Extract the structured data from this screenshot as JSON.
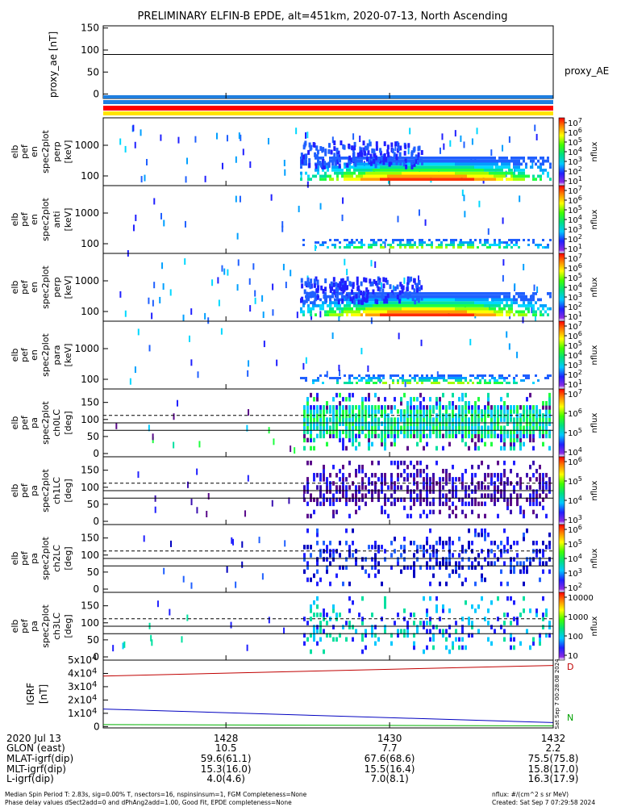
{
  "title": "PRELIMINARY ELFIN-B EPDE, alt=451km, 2020-07-13, North Ascending",
  "colors": {
    "bar_blue": "#1e7fe0",
    "bar_red": "#ff0000",
    "bar_yellow": "#ffe400",
    "model_red": "#c00000",
    "model_blue": "#0000c0",
    "model_green": "#00b000"
  },
  "chart_data": [
    {
      "type": "line",
      "name": "proxy_ae",
      "ylabel": "proxy_ae [nT]",
      "legend": "proxy_AE",
      "ylim": [
        -10,
        155
      ],
      "yticks": [
        "150",
        "100",
        "50",
        "0"
      ],
      "values_note": "",
      "series": [
        {
          "name": "proxy_AE",
          "x": [
            1426.5,
            1432.0
          ],
          "y": [
            90,
            90
          ]
        }
      ],
      "annotation_bars": [
        "blue",
        "red",
        "yellow"
      ]
    },
    {
      "type": "heatmap",
      "name": "elb_pef_en_spec2plot_perp",
      "ylabel": [
        "elb",
        "pef",
        "en",
        "spec2plot",
        "perp",
        "[keV]"
      ],
      "yticks": [
        "1000",
        "100"
      ],
      "colorbar_label": "nflux",
      "colorbar_ticks": [
        "10^7",
        "10^6",
        "10^5",
        "10^4",
        "10^3",
        "10^2",
        "10^1"
      ]
    },
    {
      "type": "heatmap",
      "name": "elb_pef_en_spec2plot_anti",
      "ylabel": [
        "elb",
        "pef",
        "en",
        "spec2plot",
        "anti",
        "[keV]"
      ],
      "yticks": [
        "1000",
        "100"
      ],
      "colorbar_label": "nflux",
      "colorbar_ticks": [
        "10^7",
        "10^6",
        "10^5",
        "10^4",
        "10^3",
        "10^2",
        "10^1"
      ]
    },
    {
      "type": "heatmap",
      "name": "elb_pef_en_spec2plot_perp2",
      "ylabel": [
        "elb",
        "pef",
        "en",
        "spec2plot",
        "perp",
        "[keV]"
      ],
      "yticks": [
        "1000",
        "100"
      ],
      "colorbar_label": "nflux",
      "colorbar_ticks": [
        "10^7",
        "10^6",
        "10^5",
        "10^4",
        "10^3",
        "10^2",
        "10^1"
      ]
    },
    {
      "type": "heatmap",
      "name": "elb_pef_en_spec2plot_para",
      "ylabel": [
        "elb",
        "pef",
        "en",
        "spec2plot",
        "para",
        "[keV]"
      ],
      "yticks": [
        "1000",
        "100"
      ],
      "colorbar_label": "nflux",
      "colorbar_ticks": [
        "10^7",
        "10^6",
        "10^5",
        "10^4",
        "10^3",
        "10^2",
        "10^1"
      ]
    },
    {
      "type": "heatmap",
      "name": "elb_pef_pa_spec2plot_ch0LC",
      "ylabel": [
        "elb",
        "pef",
        "pa",
        "spec2plot",
        "ch0LC",
        "[deg]"
      ],
      "yticks": [
        "150",
        "100",
        "50",
        "0"
      ],
      "colorbar_label": "nflux",
      "colorbar_ticks": [
        "10^7",
        "10^6",
        "10^5",
        "10^4"
      ]
    },
    {
      "type": "heatmap",
      "name": "elb_pef_pa_spec2plot_ch1LC",
      "ylabel": [
        "elb",
        "pef",
        "pa",
        "spec2plot",
        "ch1LC",
        "[deg]"
      ],
      "yticks": [
        "150",
        "100",
        "50",
        "0"
      ],
      "colorbar_label": "nflux",
      "colorbar_ticks": [
        "10^6",
        "10^5",
        "10^4",
        "10^3"
      ]
    },
    {
      "type": "heatmap",
      "name": "elb_pef_pa_spec2plot_ch2LC",
      "ylabel": [
        "elb",
        "pef",
        "pa",
        "spec2plot",
        "ch2LC",
        "[deg]"
      ],
      "yticks": [
        "150",
        "100",
        "50",
        "0"
      ],
      "colorbar_label": "nflux",
      "colorbar_ticks": [
        "10^6",
        "10^5",
        "10^4",
        "10^3",
        "10^2"
      ]
    },
    {
      "type": "heatmap",
      "name": "elb_pef_pa_spec2plot_ch3LC",
      "ylabel": [
        "elb",
        "pef",
        "pa",
        "spec2plot",
        "ch3LC",
        "[deg]"
      ],
      "yticks": [
        "150",
        "100",
        "50",
        "0"
      ],
      "colorbar_label": "nflux",
      "colorbar_ticks": [
        "10000",
        "1000",
        "100",
        "10"
      ]
    },
    {
      "type": "line",
      "name": "igrf",
      "ylabel": [
        "IGRF",
        "[nT]"
      ],
      "ylim": [
        -1000,
        50000
      ],
      "yticks": [
        "5x10^4",
        "4x10^4",
        "3x10^4",
        "2x10^4",
        "1x10^4",
        "0"
      ],
      "series": [
        {
          "name": "red",
          "x": [
            1426.5,
            1432.0
          ],
          "y": [
            38000,
            46000
          ]
        },
        {
          "name": "blue",
          "x": [
            1426.5,
            1432.0
          ],
          "y": [
            13200,
            3000
          ]
        },
        {
          "name": "green",
          "x": [
            1426.5,
            1432.0
          ],
          "y": [
            1500,
            500
          ]
        }
      ],
      "side_text": "Sat Sep 7 00:28:08 2024",
      "legend_letters": [
        "D",
        "N"
      ]
    }
  ],
  "xaxis": {
    "ticks": [
      "1428",
      "1430",
      "1432"
    ],
    "rows": [
      {
        "label": "2020 Jul 13",
        "values": [
          "1428",
          "1430",
          "1432"
        ]
      },
      {
        "label": "GLON (east)",
        "values": [
          "10.5",
          "7.7",
          "2.2"
        ]
      },
      {
        "label": "MLAT-igrf(dip)",
        "values": [
          "59.6(61.1)",
          "67.6(68.6)",
          "75.5(75.8)"
        ]
      },
      {
        "label": "MLT-igrf(dip)",
        "values": [
          "15.3(16.0)",
          "15.5(16.4)",
          "15.8(17.0)"
        ]
      },
      {
        "label": "L-igrf(dip)",
        "values": [
          "4.0(4.6)",
          "7.0(8.1)",
          "16.3(17.9)"
        ]
      }
    ]
  },
  "footer": {
    "line1": "Median Spin Period T: 2.83s, sig=0.00% T, nsectors=16, nspinsinsum=1, FGM Completeness=None",
    "line2": "Phase delay values dSect2add=0 and dPhAng2add=1.00, Good Fit, EPDE completeness=None",
    "units": "nflux: #/(cm^2 s sr MeV)",
    "created": "Created: Sat Sep  7 07:29:58 2024"
  }
}
